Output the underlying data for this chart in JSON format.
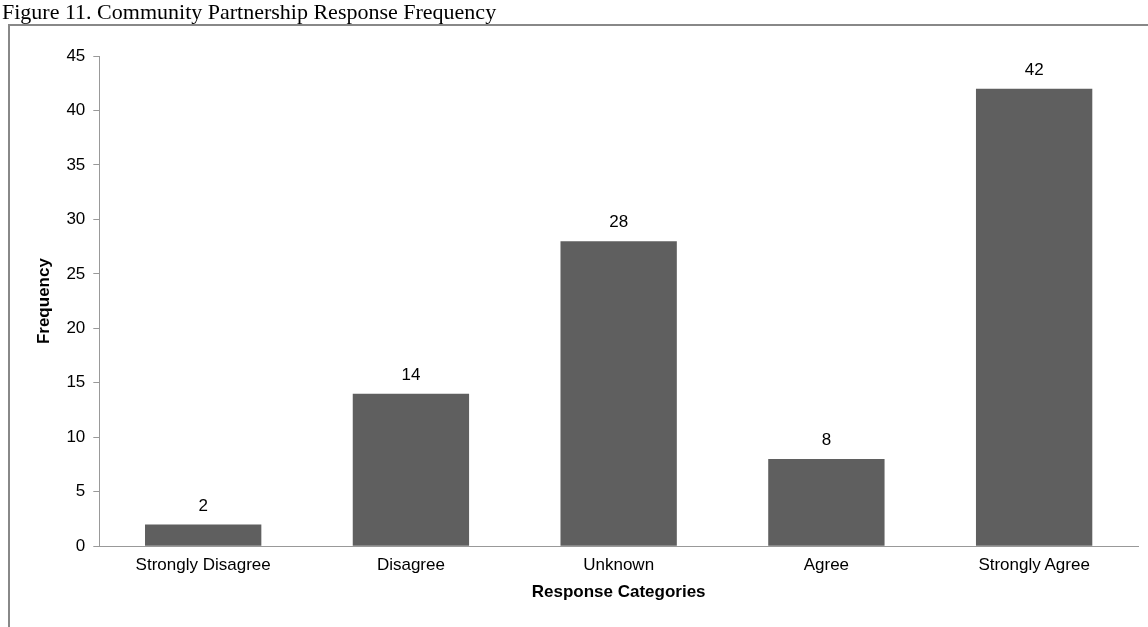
{
  "chart_data": {
    "type": "bar",
    "title": "Figure 11. Community Partnership Response Frequency",
    "xlabel": "Response Categories",
    "ylabel": "Frequency",
    "categories": [
      "Strongly Disagree",
      "Disagree",
      "Unknown",
      "Agree",
      "Strongly Agree"
    ],
    "values": [
      2,
      14,
      28,
      8,
      42
    ],
    "color": "#5f5f5f",
    "ylim": [
      0,
      45
    ],
    "yticks": [
      0,
      5,
      10,
      15,
      20,
      25,
      30,
      35,
      40,
      45
    ],
    "grid": false,
    "legend": false,
    "data_labels": true
  }
}
